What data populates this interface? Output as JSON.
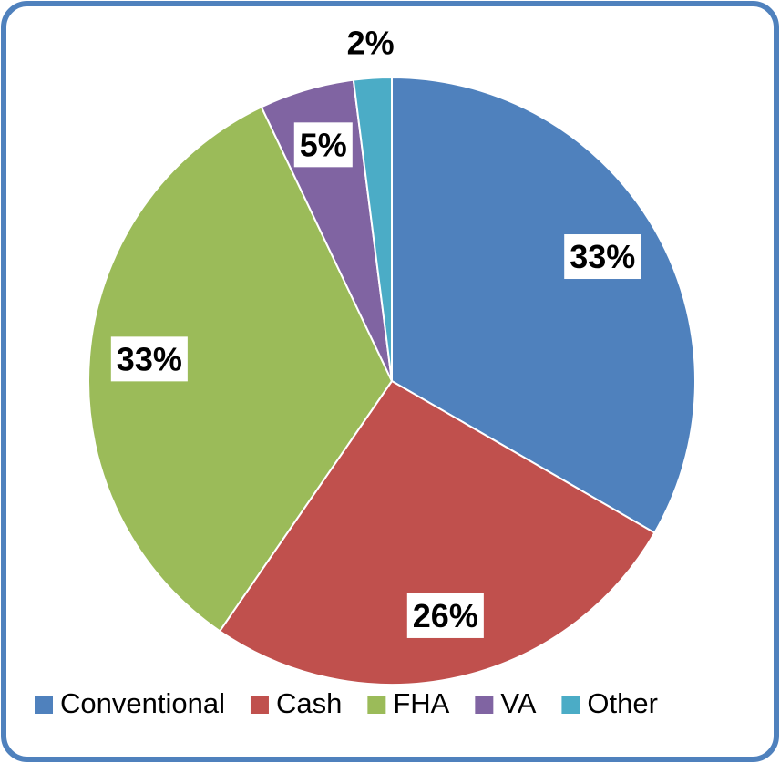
{
  "chart_data": {
    "type": "pie",
    "categories": [
      "Conventional",
      "Cash",
      "FHA",
      "VA",
      "Other"
    ],
    "values": [
      33,
      26,
      33,
      5,
      2
    ],
    "value_labels": [
      "33%",
      "26%",
      "33%",
      "5%",
      "2%"
    ],
    "colors": [
      "#4f81bd",
      "#c0504d",
      "#9bbb59",
      "#8064a2",
      "#4bacc6"
    ],
    "legend": "bottom"
  }
}
